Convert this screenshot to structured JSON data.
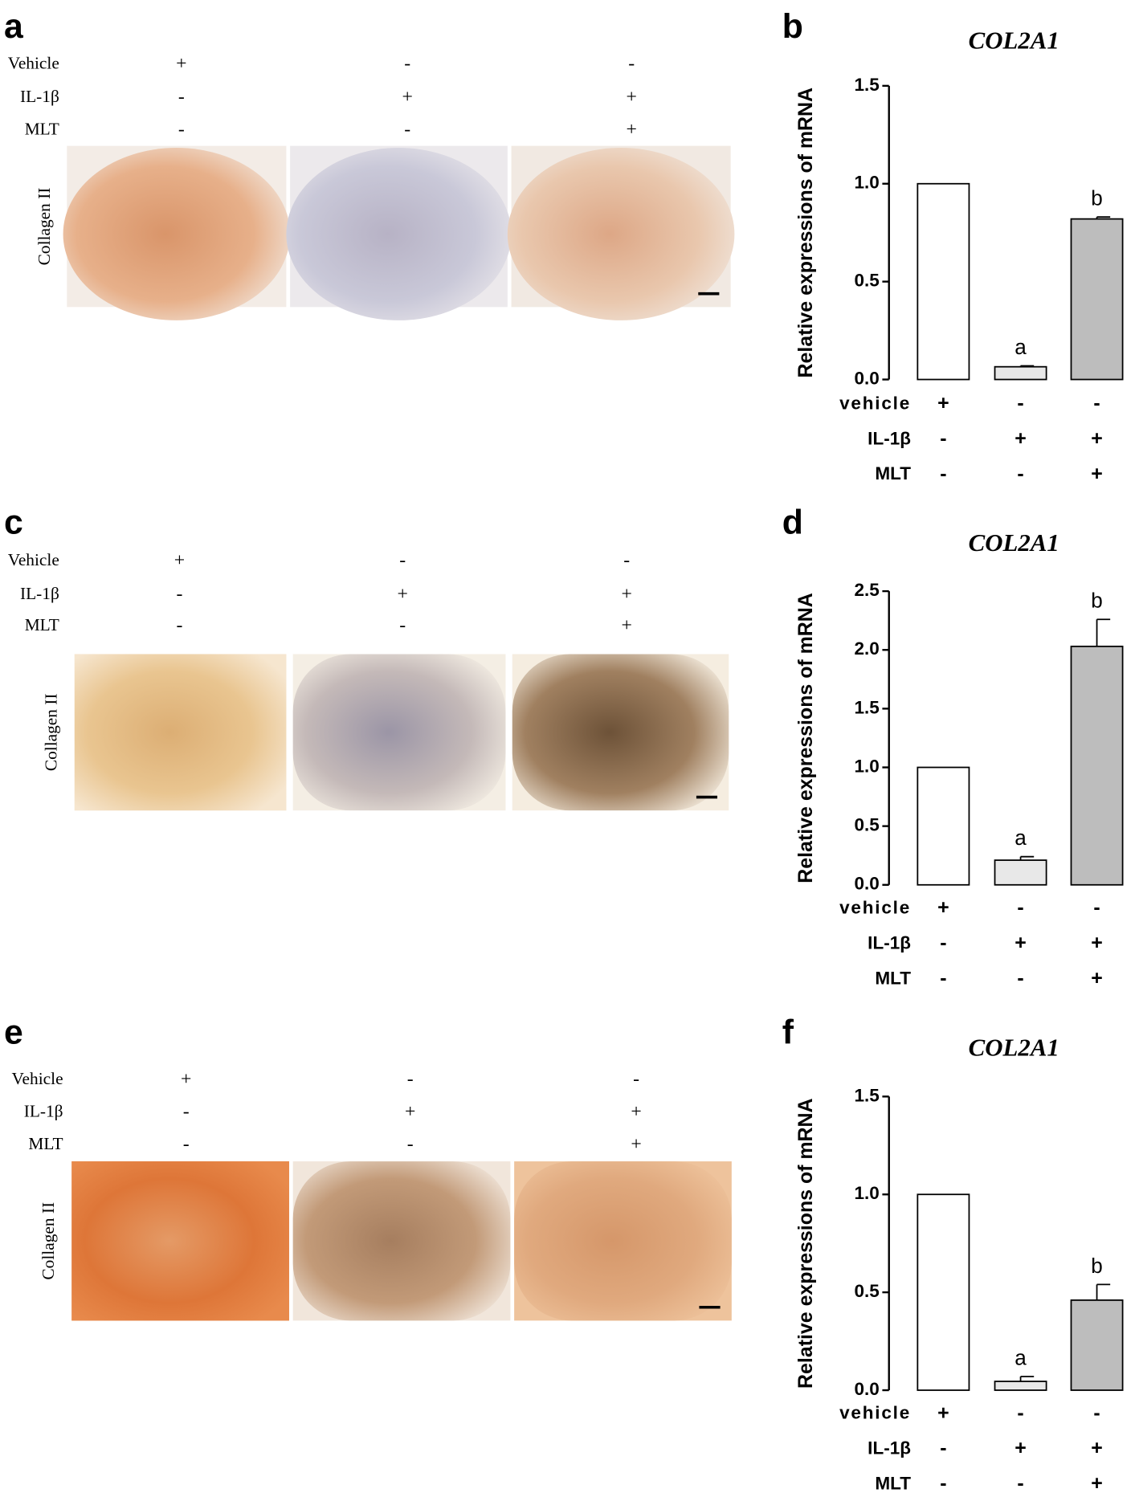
{
  "image_panels": [
    {
      "panel_label": "a",
      "stain_label": "Collagen II",
      "conditions": [
        {
          "name": "Vehicle",
          "signs": [
            "+",
            "-",
            "-"
          ]
        },
        {
          "name": "IL-1β",
          "signs": [
            "-",
            "+",
            "+"
          ]
        },
        {
          "name": "MLT",
          "signs": [
            "-",
            "-",
            "+"
          ]
        }
      ]
    },
    {
      "panel_label": "c",
      "stain_label": "Collagen II",
      "conditions": [
        {
          "name": "Vehicle",
          "signs": [
            "+",
            "-",
            "-"
          ]
        },
        {
          "name": "IL-1β",
          "signs": [
            "-",
            "+",
            "+"
          ]
        },
        {
          "name": "MLT",
          "signs": [
            "-",
            "-",
            "+"
          ]
        }
      ]
    },
    {
      "panel_label": "e",
      "stain_label": "Collagen II",
      "conditions": [
        {
          "name": "Vehicle",
          "signs": [
            "+",
            "-",
            "-"
          ]
        },
        {
          "name": "IL-1β",
          "signs": [
            "-",
            "+",
            "+"
          ]
        },
        {
          "name": "MLT",
          "signs": [
            "-",
            "-",
            "+"
          ]
        }
      ]
    }
  ],
  "chart_data": [
    {
      "type": "bar",
      "panel_label": "b",
      "title": "COL2A1",
      "ylabel": "Relative expressions of mRNA",
      "values": [
        1.0,
        0.065,
        0.82
      ],
      "errors": [
        0,
        0.005,
        0.01
      ],
      "annotations": [
        null,
        "a",
        "b"
      ],
      "colors": [
        "#ffffff",
        "#e8e8e8",
        "#bdbdbd"
      ],
      "ylim": [
        0,
        1.5
      ],
      "yticks": [
        {
          "value": 0,
          "label": "0.0"
        },
        0.5,
        {
          "value": 1,
          "label": "1.0"
        },
        1.5
      ],
      "conditions": [
        {
          "name": "vehicle",
          "signs": [
            "+",
            "-",
            "-"
          ]
        },
        {
          "name": "IL-1β",
          "signs": [
            "-",
            "+",
            "+"
          ]
        },
        {
          "name": "MLT",
          "signs": [
            "-",
            "-",
            "+"
          ]
        }
      ]
    },
    {
      "type": "bar",
      "panel_label": "d",
      "title": "COL2A1",
      "ylabel": "Relative expressions of mRNA",
      "values": [
        1.0,
        0.21,
        2.03
      ],
      "errors": [
        0,
        0.03,
        0.23
      ],
      "annotations": [
        null,
        "a",
        "b"
      ],
      "colors": [
        "#ffffff",
        "#e8e8e8",
        "#bdbdbd"
      ],
      "ylim": [
        0,
        2.5
      ],
      "yticks": [
        {
          "value": 0,
          "label": "0.0"
        },
        0.5,
        {
          "value": 1,
          "label": "1.0"
        },
        1.5,
        {
          "value": 2,
          "label": "2.0"
        },
        2.5
      ],
      "conditions": [
        {
          "name": "vehicle",
          "signs": [
            "+",
            "-",
            "-"
          ]
        },
        {
          "name": "IL-1β",
          "signs": [
            "-",
            "+",
            "+"
          ]
        },
        {
          "name": "MLT",
          "signs": [
            "-",
            "-",
            "+"
          ]
        }
      ]
    },
    {
      "type": "bar",
      "panel_label": "f",
      "title": "COL2A1",
      "ylabel": "Relative expressions of mRNA",
      "values": [
        1.0,
        0.045,
        0.46
      ],
      "errors": [
        0,
        0.025,
        0.08
      ],
      "annotations": [
        null,
        "a",
        "b"
      ],
      "colors": [
        "#ffffff",
        "#e8e8e8",
        "#bdbdbd"
      ],
      "ylim": [
        0,
        1.5
      ],
      "yticks": [
        {
          "value": 0,
          "label": "0.0"
        },
        0.5,
        {
          "value": 1,
          "label": "1.0"
        },
        1.5
      ],
      "conditions": [
        {
          "name": "vehicle",
          "signs": [
            "+",
            "-",
            "-"
          ]
        },
        {
          "name": "IL-1β",
          "signs": [
            "-",
            "+",
            "+"
          ]
        },
        {
          "name": "MLT",
          "signs": [
            "-",
            "-",
            "+"
          ]
        }
      ]
    }
  ]
}
